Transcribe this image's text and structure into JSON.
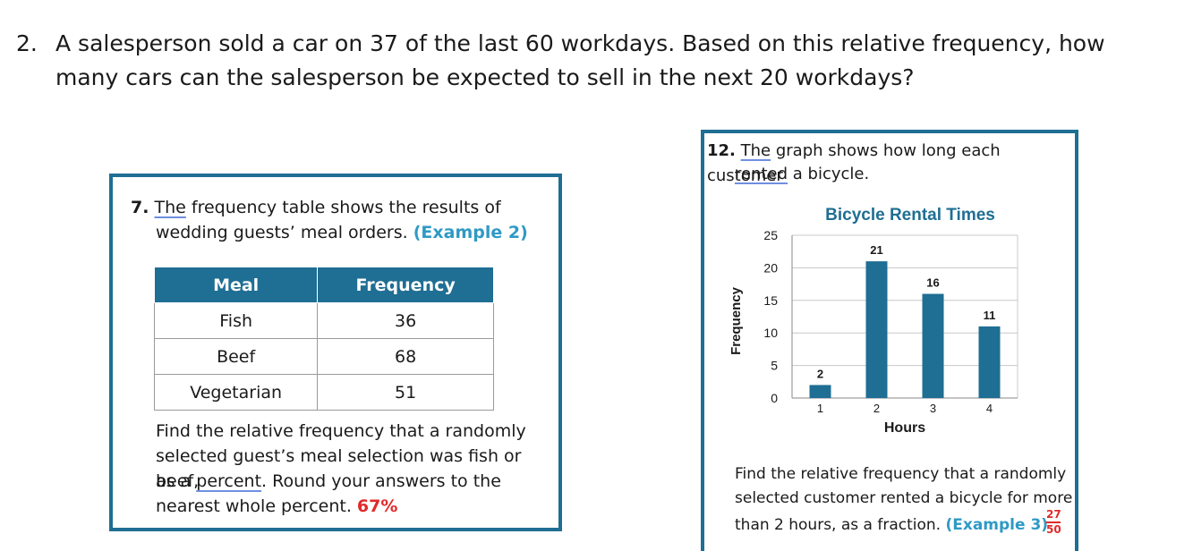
{
  "q2": {
    "number": "2.",
    "text": "A salesperson sold a car on 37 of the last 60 workdays. Based on this relative frequency, how many cars can the salesperson be expected to sell in the next 20 workdays?"
  },
  "q7": {
    "number": "7.",
    "first_word": "The",
    "line1_rest": " frequency table shows the results of",
    "line2": "wedding guests’ meal orders.",
    "example_link": "(Example 2)",
    "table": {
      "headers": [
        "Meal",
        "Frequency"
      ],
      "rows": [
        [
          "Fish",
          "36"
        ],
        [
          "Beef",
          "68"
        ],
        [
          "Vegetarian",
          "51"
        ]
      ]
    },
    "prompt_line1": "Find the relative frequency that a randomly",
    "prompt_line2": "selected guest’s meal selection was fish or beef,",
    "prompt_line3_pre": "as a ",
    "prompt_line3_word": "percent",
    "prompt_line3_post": ". Round your answers to the",
    "prompt_line4": "nearest whole percent.",
    "answer": "67%"
  },
  "q12": {
    "number": "12.",
    "first_word": "The",
    "line1_rest": " graph shows how long each customer",
    "line2_word": "rented",
    "line2_rest": " a bicycle.",
    "prompt_line1": "Find the relative frequency that a randomly",
    "prompt_line2": "selected customer rented a bicycle for more",
    "prompt_line3": "than 2 hours, as a fraction.",
    "example_link": "(Example 3)",
    "answer_numerator": "27",
    "answer_denominator": "50"
  },
  "chart_data": {
    "type": "bar",
    "title": "Bicycle Rental Times",
    "xlabel": "Hours",
    "ylabel": "Frequency",
    "categories": [
      "1",
      "2",
      "3",
      "4"
    ],
    "values": [
      2,
      21,
      16,
      11
    ],
    "yticks": [
      "0",
      "5",
      "10",
      "15",
      "20",
      "25"
    ],
    "ylim": [
      0,
      25
    ],
    "grid": true,
    "bar_color": "#1f6e93"
  },
  "colors": {
    "accent": "#1f6e93",
    "link": "#2e9ac4",
    "answer": "#e02a2a"
  }
}
